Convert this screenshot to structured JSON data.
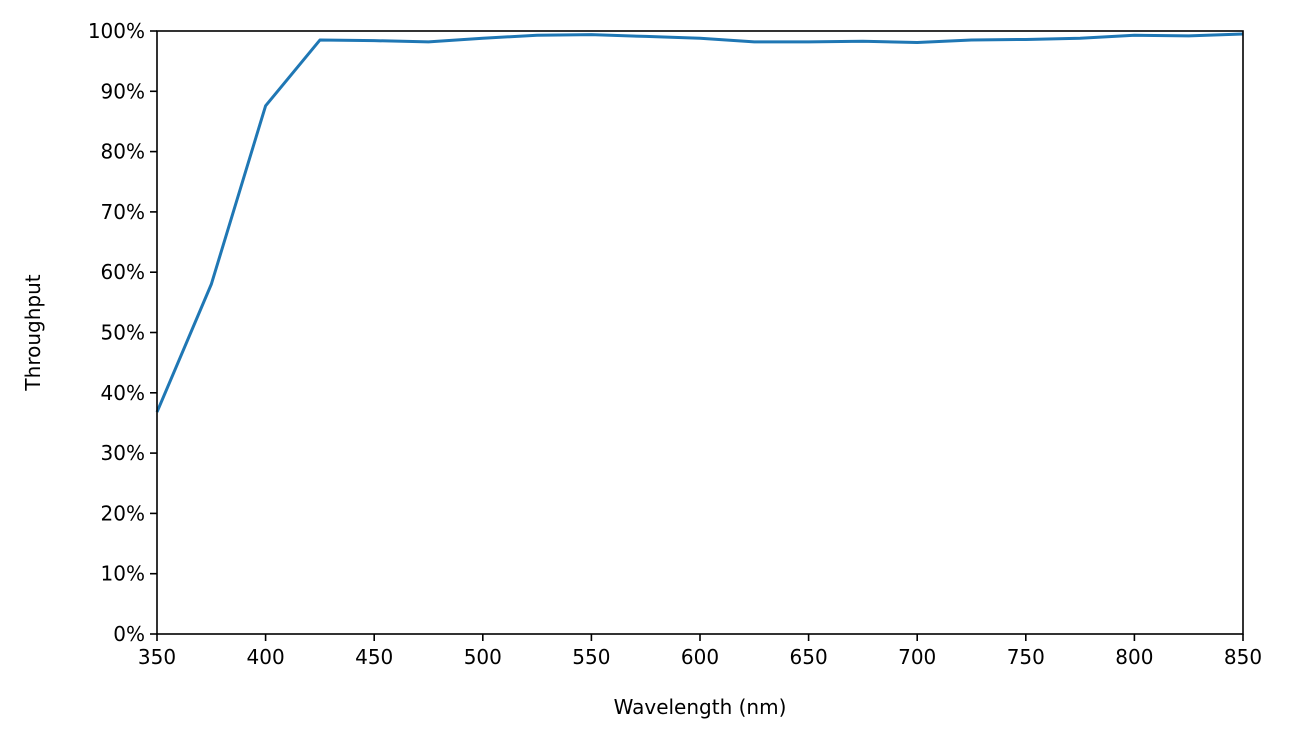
{
  "chart_data": {
    "type": "line",
    "title": "",
    "xlabel": "Wavelength (nm)",
    "ylabel": "Throughput",
    "xlim": [
      350,
      850
    ],
    "ylim": [
      0,
      1
    ],
    "grid": false,
    "x_ticks": [
      350,
      400,
      450,
      500,
      550,
      600,
      650,
      700,
      750,
      800,
      850
    ],
    "x_tick_labels": [
      "350",
      "400",
      "450",
      "500",
      "550",
      "600",
      "650",
      "700",
      "750",
      "800",
      "850"
    ],
    "y_ticks": [
      0,
      0.1,
      0.2,
      0.3,
      0.4,
      0.5,
      0.6,
      0.7,
      0.8,
      0.9,
      1.0
    ],
    "y_tick_labels": [
      "0%",
      "10%",
      "20%",
      "30%",
      "40%",
      "50%",
      "60%",
      "70%",
      "80%",
      "90%",
      "100%"
    ],
    "series": [
      {
        "color": "#1f77b4",
        "x": [
          350,
          375,
          400,
          425,
          450,
          475,
          500,
          525,
          550,
          575,
          600,
          625,
          650,
          675,
          700,
          725,
          750,
          775,
          800,
          825,
          850
        ],
        "y": [
          0.368,
          0.58,
          0.876,
          0.985,
          0.984,
          0.982,
          0.988,
          0.993,
          0.994,
          0.991,
          0.988,
          0.982,
          0.982,
          0.983,
          0.981,
          0.985,
          0.986,
          0.988,
          0.993,
          0.992,
          0.995
        ]
      }
    ]
  }
}
